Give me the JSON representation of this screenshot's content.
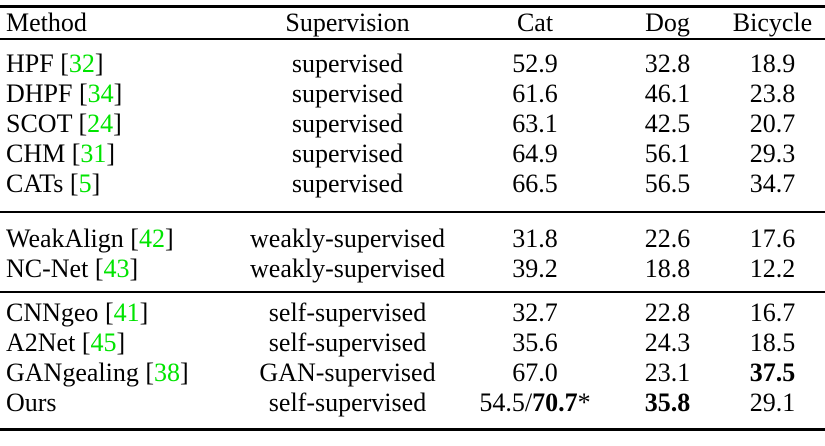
{
  "colors": {
    "citation_green": "#00E400",
    "text": "#000000",
    "rule": "#000000",
    "background": "#ffffff"
  },
  "table": {
    "columns": [
      "Method",
      "Supervision",
      "Cat",
      "Dog",
      "Bicycle"
    ],
    "groups": [
      {
        "name": "supervised-methods",
        "rows": [
          {
            "method": "HPF",
            "ref": "32",
            "supervision": "supervised",
            "cells": [
              {
                "text": "52.9"
              },
              {
                "text": "32.8"
              },
              {
                "text": "18.9"
              }
            ]
          },
          {
            "method": "DHPF",
            "ref": "34",
            "supervision": "supervised",
            "cells": [
              {
                "text": "61.6"
              },
              {
                "text": "46.1"
              },
              {
                "text": "23.8"
              }
            ]
          },
          {
            "method": "SCOT",
            "ref": "24",
            "supervision": "supervised",
            "cells": [
              {
                "text": "63.1"
              },
              {
                "text": "42.5"
              },
              {
                "text": "20.7"
              }
            ]
          },
          {
            "method": "CHM",
            "ref": "31",
            "supervision": "supervised",
            "cells": [
              {
                "text": "64.9"
              },
              {
                "text": "56.1"
              },
              {
                "text": "29.3"
              }
            ]
          },
          {
            "method": "CATs",
            "ref": "5",
            "supervision": "supervised",
            "cells": [
              {
                "text": "66.5"
              },
              {
                "text": "56.5"
              },
              {
                "text": "34.7"
              }
            ]
          }
        ]
      },
      {
        "name": "weakly-supervised-methods",
        "rows": [
          {
            "method": "WeakAlign",
            "ref": "42",
            "supervision": "weakly-supervised",
            "cells": [
              {
                "text": "31.8"
              },
              {
                "text": "22.6"
              },
              {
                "text": "17.6"
              }
            ]
          },
          {
            "method": "NC-Net",
            "ref": "43",
            "supervision": "weakly-supervised",
            "cells": [
              {
                "text": "39.2"
              },
              {
                "text": "18.8"
              },
              {
                "text": "12.2"
              }
            ]
          }
        ]
      },
      {
        "name": "self-supervised-methods",
        "rows": [
          {
            "method": "CNNgeo",
            "ref": "41",
            "supervision": "self-supervised",
            "cells": [
              {
                "text": "32.7"
              },
              {
                "text": "22.8"
              },
              {
                "text": "16.7"
              }
            ]
          },
          {
            "method": "A2Net",
            "ref": "45",
            "supervision": "self-supervised",
            "cells": [
              {
                "text": "35.6"
              },
              {
                "text": "24.3"
              },
              {
                "text": "18.5"
              }
            ]
          },
          {
            "method": "GANgealing",
            "ref": "38",
            "supervision": "GAN-supervised",
            "cells": [
              {
                "text": "67.0"
              },
              {
                "text": "23.1"
              },
              {
                "text": "37.5",
                "bold": true
              }
            ]
          },
          {
            "method": "Ours",
            "ref": null,
            "supervision": "self-supervised",
            "cells": [
              {
                "parts": [
                  {
                    "text": "54.5/"
                  },
                  {
                    "text": "70.7",
                    "bold": true
                  },
                  {
                    "text": "*"
                  }
                ]
              },
              {
                "text": "35.8",
                "bold": true
              },
              {
                "text": "29.1"
              }
            ]
          }
        ]
      }
    ]
  }
}
